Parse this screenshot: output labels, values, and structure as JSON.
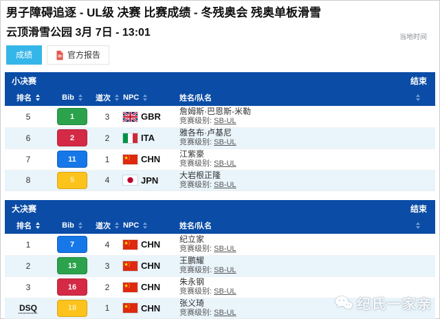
{
  "page": {
    "title": "男子障碍追逐 - UL级 决赛 比赛成绩 - 冬残奥会 残奥单板滑雪",
    "subtitle": "云顶滑雪公园 3月 7日 - 13:01",
    "local_time_label": "当地时间"
  },
  "tabs": [
    {
      "label": "成绩",
      "active": true
    },
    {
      "label": "官方报告",
      "active": false,
      "icon": "pdf-document-icon"
    }
  ],
  "colors": {
    "header_blue": "#0a4ca6",
    "tab_active": "#35b6e8",
    "row_alt": "#e9f4fb",
    "bib": {
      "green": {
        "bg": "#2ca24c",
        "border": "#1f8a3d",
        "text": "#ffffff"
      },
      "red": {
        "bg": "#d42a45",
        "border": "#b51f37",
        "text": "#ffffff"
      },
      "blue": {
        "bg": "#1678e8",
        "border": "#0d5fc0",
        "text": "#ffffff"
      },
      "yellow": {
        "bg": "#fcc31d",
        "border": "#d9a30f",
        "text": "#fdeaa0"
      }
    }
  },
  "tables": [
    {
      "title": "小决赛",
      "status_label": "结束",
      "columns": {
        "rank": "排名",
        "bib": "Bib",
        "lane": "道次",
        "npc": "NPC",
        "name": "姓名/队名"
      },
      "rows": [
        {
          "rank": "5",
          "dsq": false,
          "bib": "1",
          "bib_color": "green",
          "lane": "3",
          "flag": "gbr",
          "npc": "GBR",
          "name": "詹姆斯·巴恩斯-米勒",
          "class_label": "竞赛级别:",
          "class_value": "SB-UL"
        },
        {
          "rank": "6",
          "dsq": false,
          "bib": "2",
          "bib_color": "red",
          "lane": "2",
          "flag": "ita",
          "npc": "ITA",
          "name": "雅各布·卢基尼",
          "class_label": "竞赛级别:",
          "class_value": "SB-UL"
        },
        {
          "rank": "7",
          "dsq": false,
          "bib": "11",
          "bib_color": "blue",
          "lane": "1",
          "flag": "chn",
          "npc": "CHN",
          "name": "江紫豪",
          "class_label": "竞赛级别:",
          "class_value": "SB-UL"
        },
        {
          "rank": "8",
          "dsq": false,
          "bib": "5",
          "bib_color": "yellow",
          "lane": "4",
          "flag": "jpn",
          "npc": "JPN",
          "name": "大岩根正隆",
          "class_label": "竞赛级别:",
          "class_value": "SB-UL"
        }
      ]
    },
    {
      "title": "大决赛",
      "status_label": "结束",
      "columns": {
        "rank": "排名",
        "bib": "Bib",
        "lane": "道次",
        "npc": "NPC",
        "name": "姓名/队名"
      },
      "rows": [
        {
          "rank": "1",
          "dsq": false,
          "bib": "7",
          "bib_color": "blue",
          "lane": "4",
          "flag": "chn",
          "npc": "CHN",
          "name": "纪立家",
          "class_label": "竞赛级别:",
          "class_value": "SB-UL"
        },
        {
          "rank": "2",
          "dsq": false,
          "bib": "13",
          "bib_color": "green",
          "lane": "3",
          "flag": "chn",
          "npc": "CHN",
          "name": "王鹏耀",
          "class_label": "竞赛级别:",
          "class_value": "SB-UL"
        },
        {
          "rank": "3",
          "dsq": false,
          "bib": "16",
          "bib_color": "red",
          "lane": "2",
          "flag": "chn",
          "npc": "CHN",
          "name": "朱永钢",
          "class_label": "竞赛级别:",
          "class_value": "SB-UL"
        },
        {
          "rank": "DSQ",
          "dsq": true,
          "bib": "18",
          "bib_color": "yellow",
          "lane": "1",
          "flag": "chn",
          "npc": "CHN",
          "name": "张义琦",
          "class_label": "竞赛级别:",
          "class_value": "SB-UL"
        }
      ]
    }
  ],
  "watermark": {
    "text": "纪氏一家亲",
    "icon": "wechat-icon"
  }
}
